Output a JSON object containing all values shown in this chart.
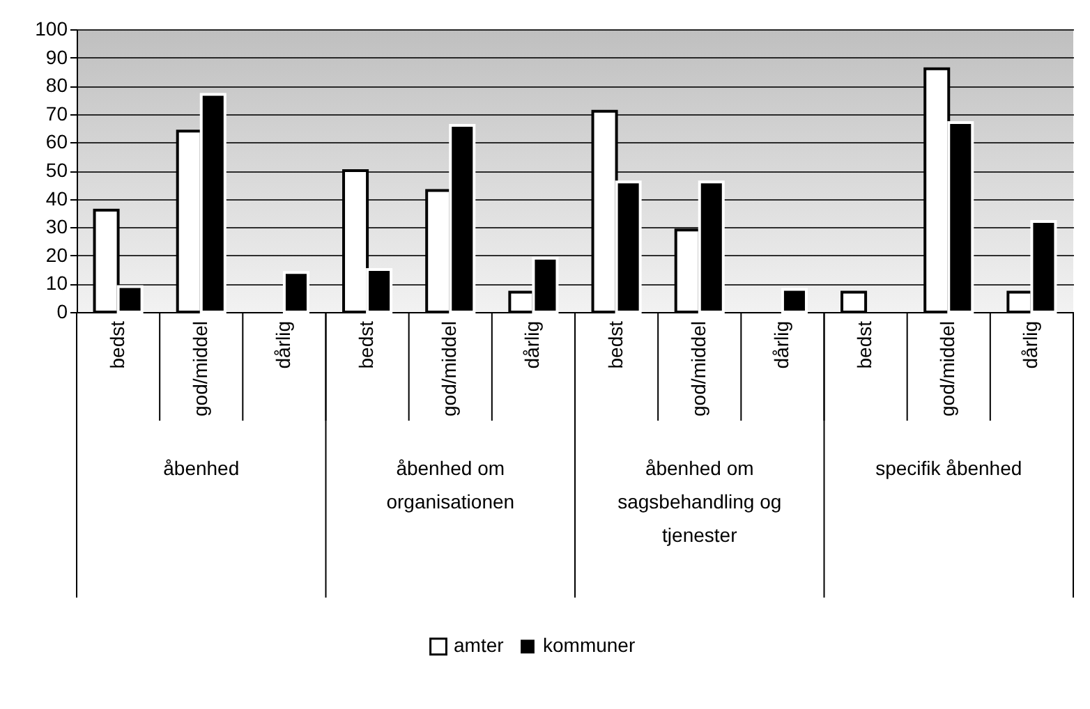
{
  "chart_data": {
    "type": "bar",
    "categories": [
      "bedst",
      "god/middel",
      "dårlig",
      "bedst",
      "god/middel",
      "dårlig",
      "bedst",
      "god/middel",
      "dårlig",
      "bedst",
      "god/middel",
      "dårlig"
    ],
    "series": [
      {
        "name": "amter",
        "color": "#ffffff",
        "values": [
          36,
          64,
          null,
          50,
          43,
          7,
          71,
          29,
          null,
          7,
          86,
          7
        ]
      },
      {
        "name": "kommuner",
        "color": "#000000",
        "values": [
          9,
          77,
          14,
          15,
          66,
          19,
          46,
          46,
          8,
          null,
          67,
          32
        ]
      }
    ],
    "annotations": [
      "åbenhed",
      "åbenhed om organisationen",
      "åbenhed om sagsbehandling og tjenester",
      "specifik åbenhed"
    ],
    "ylim": [
      0,
      100
    ],
    "yticks": [
      0,
      10,
      20,
      30,
      40,
      50,
      60,
      70,
      80,
      90,
      100
    ],
    "grid": true,
    "legend": "bottom"
  }
}
